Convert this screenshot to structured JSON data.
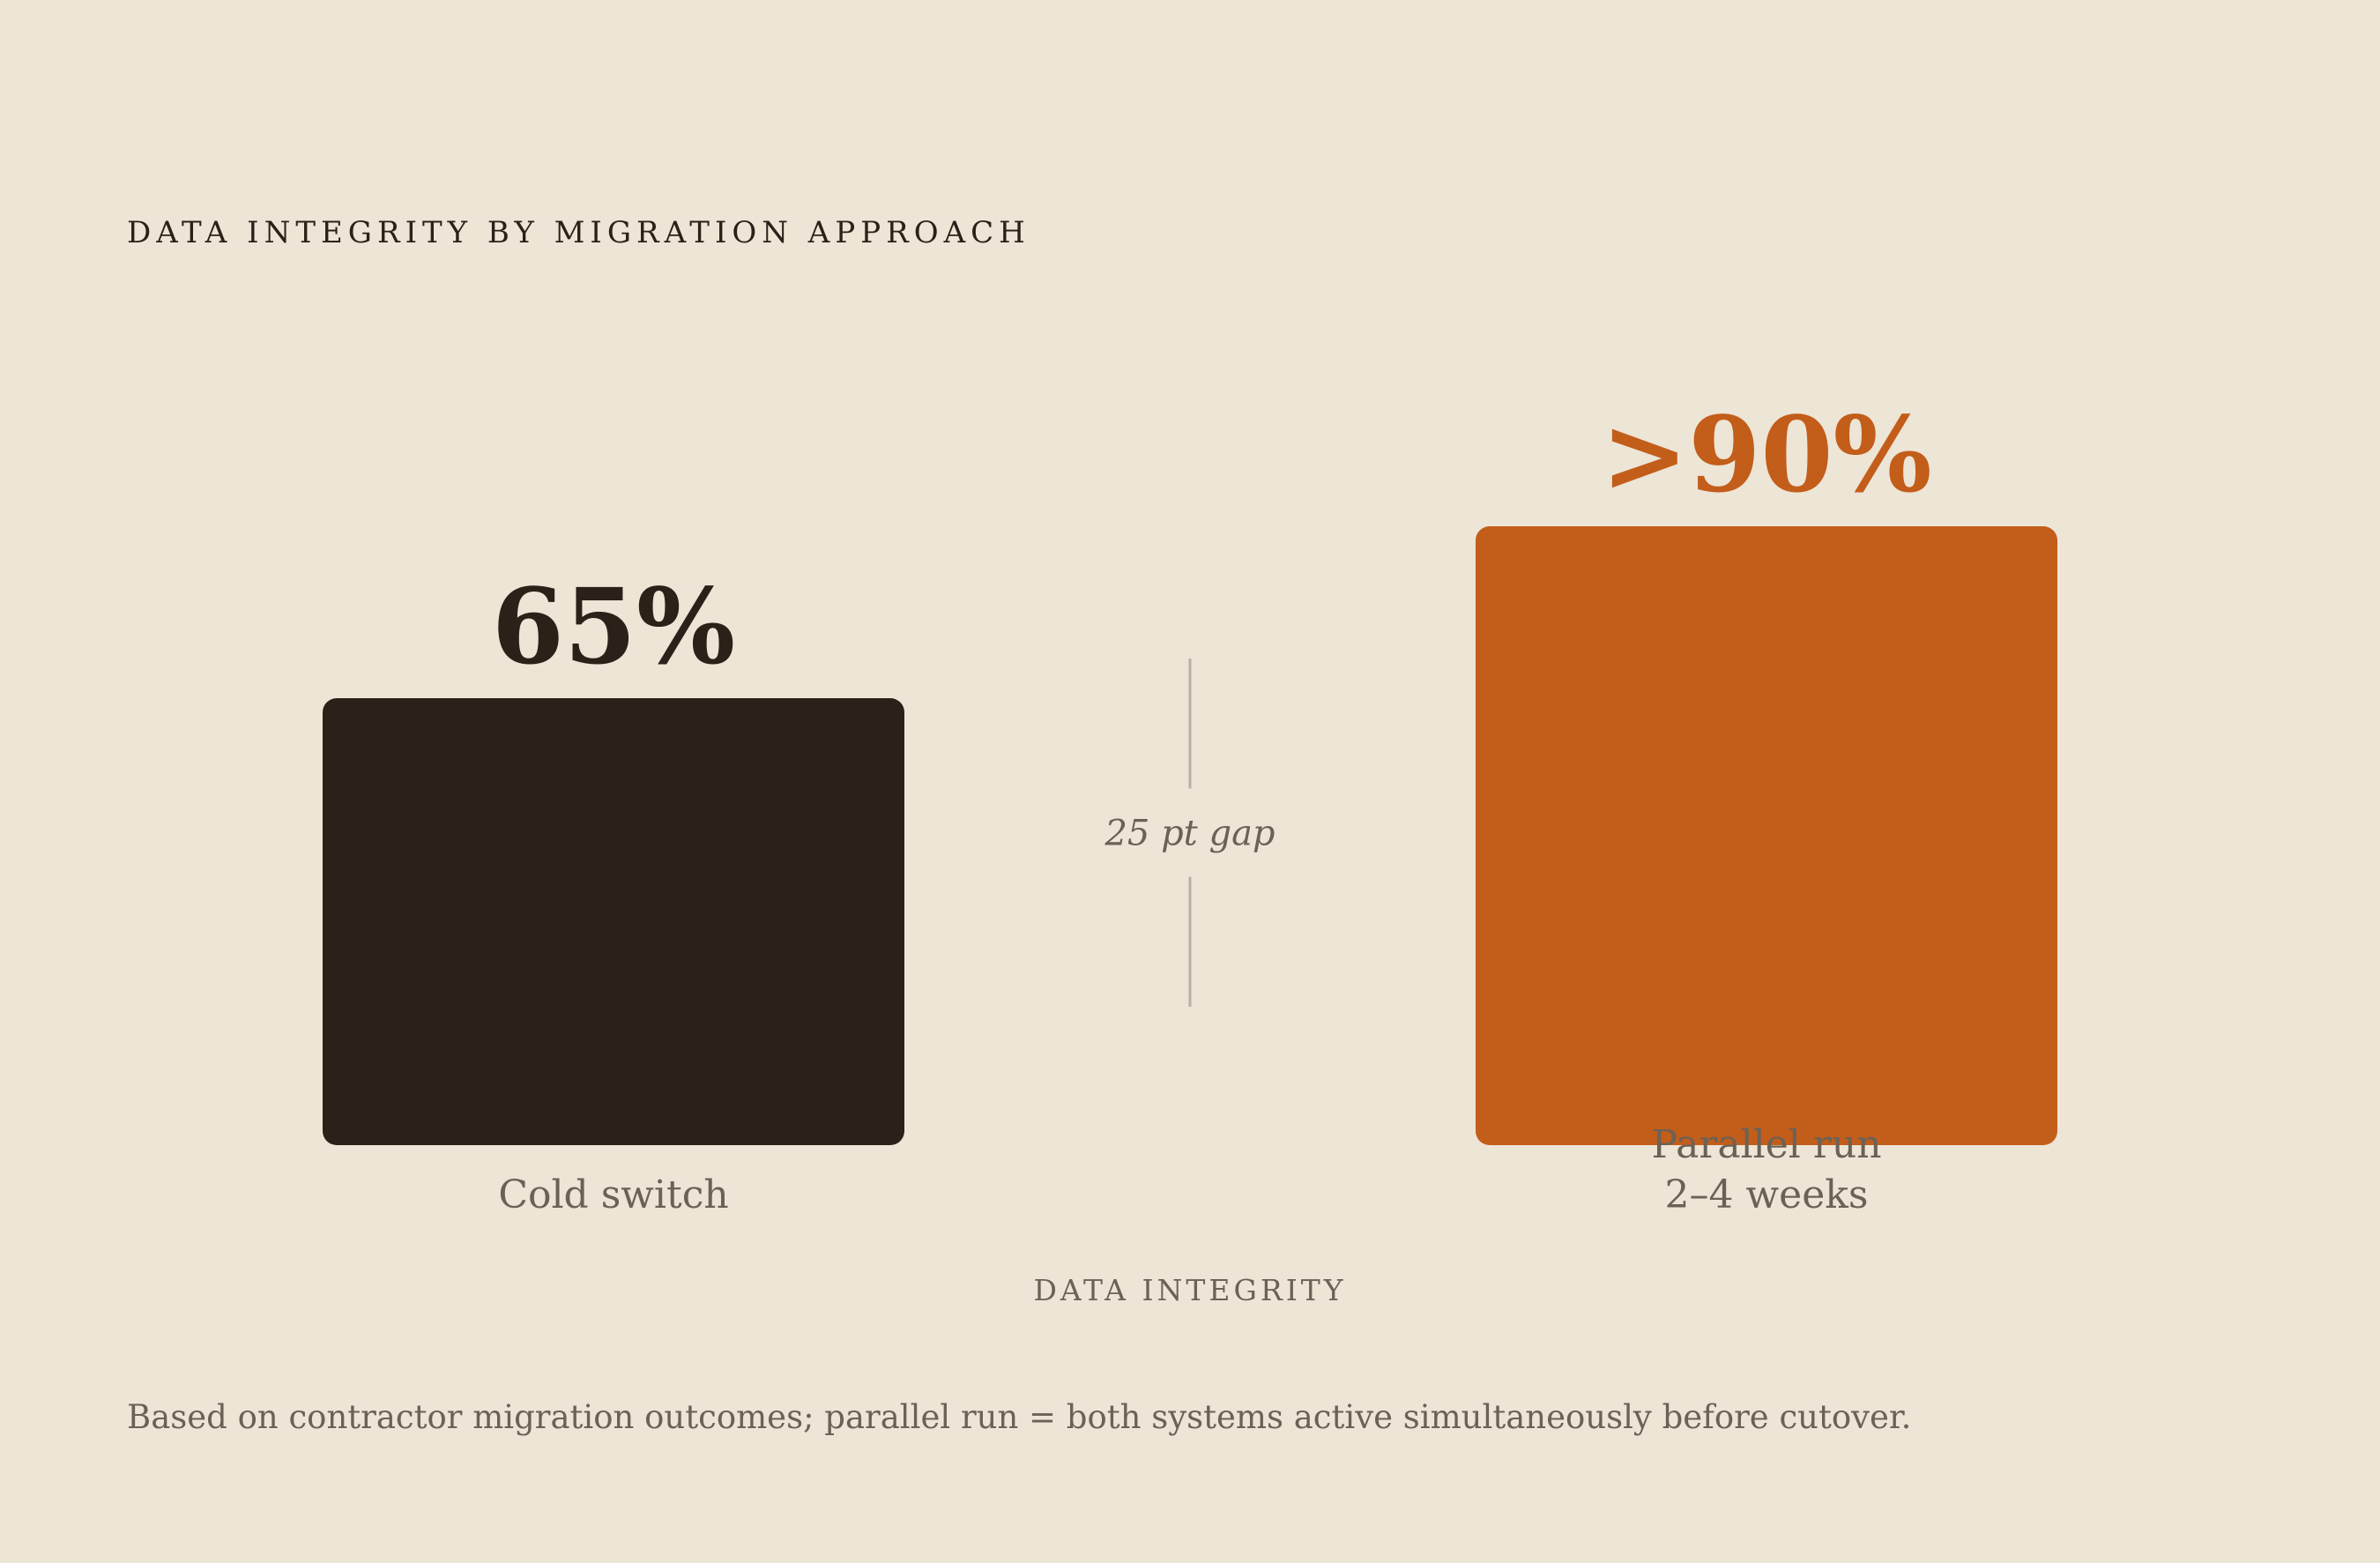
{
  "chart_data": {
    "type": "bar",
    "title": "DATA INTEGRITY BY MIGRATION APPROACH",
    "xlabel": "DATA INTEGRITY",
    "ylabel": "",
    "categories": [
      "Cold switch",
      "Parallel run\n2–4 weeks"
    ],
    "values": [
      65,
      90
    ],
    "value_labels": [
      "65%",
      ">90%"
    ],
    "colors": [
      "#2a2118",
      "#c35d1a"
    ],
    "ylim": [
      0,
      100
    ],
    "grid": false,
    "annotation": {
      "text": "25 pt gap",
      "from_value": 65,
      "to_value": 90
    }
  },
  "footnote": "Based on contractor migration outcomes; parallel run = both systems active simultaneously before cutover.",
  "colors": {
    "background": "#ede5d6",
    "muted_text": "#6b6257",
    "divider": "#b9b1a4"
  }
}
